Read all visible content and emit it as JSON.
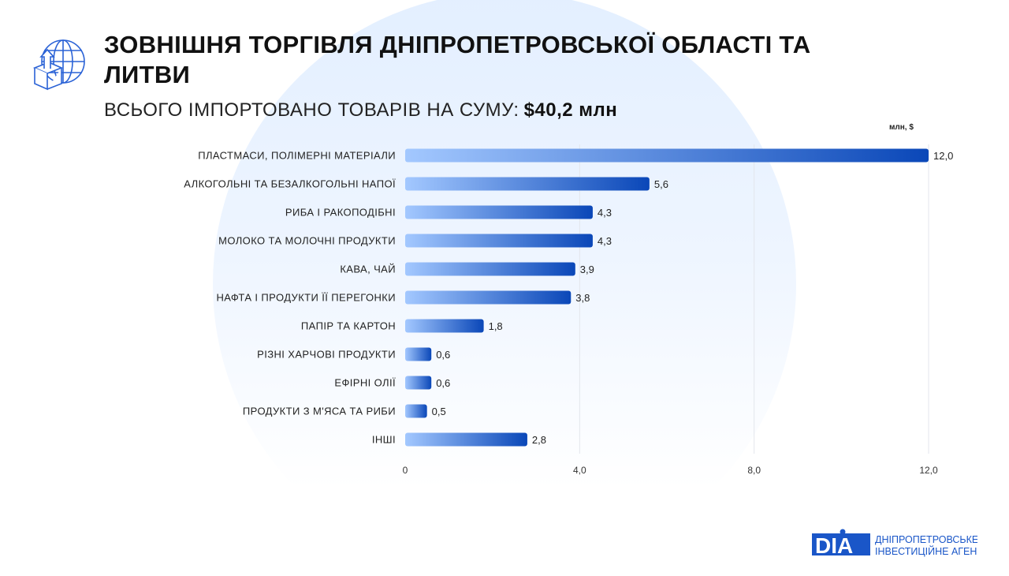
{
  "header": {
    "title": "ЗОВНІШНЯ ТОРГІВЛЯ ДНІПРОПЕТРОВСЬКОЇ ОБЛАСТІ ТА ЛИТВИ",
    "subtitle_label": "ВСЬОГО ІМПОРТОВАНО ТОВАРІВ НА СУМУ:",
    "subtitle_value": "$40,2 млн",
    "icon": "globe-box-export-icon"
  },
  "colors": {
    "bar_start": "#a3c8ff",
    "bar_end": "#0a47b8",
    "accent": "#1a56c8"
  },
  "chart_data": {
    "type": "bar",
    "orientation": "horizontal",
    "unit_label": "млн, $",
    "categories": [
      "ПЛАСТМАСИ, ПОЛІМЕРНІ МАТЕРІАЛИ",
      "АЛКОГОЛЬНІ ТА БЕЗАЛКОГОЛЬНІ НАПОЇ",
      "РИБА І РАКОПОДІБНІ",
      "МОЛОКО ТА МОЛОЧНІ ПРОДУКТИ",
      "КАВА, ЧАЙ",
      "НАФТА І ПРОДУКТИ ЇЇ ПЕРЕГОНКИ",
      "ПАПІР ТА КАРТОН",
      "РІЗНІ ХАРЧОВІ ПРОДУКТИ",
      "ЕФІРНІ ОЛІЇ",
      "ПРОДУКТИ З М'ЯСА ТА РИБИ",
      "ІНШІ"
    ],
    "values": [
      12.0,
      5.6,
      4.3,
      4.3,
      3.9,
      3.8,
      1.8,
      0.6,
      0.6,
      0.5,
      2.8
    ],
    "value_labels": [
      "12,0",
      "5,6",
      "4,3",
      "4,3",
      "3,9",
      "3,8",
      "1,8",
      "0,6",
      "0,6",
      "0,5",
      "2,8"
    ],
    "xlim": [
      0,
      12
    ],
    "xticks": [
      0,
      4,
      8,
      12
    ],
    "xtick_labels": [
      "0",
      "4,0",
      "8,0",
      "12,0"
    ],
    "grid": true
  },
  "footer": {
    "logo_text": "DIA",
    "org_line1": "ДНІПРОПЕТРОВСЬКЕ",
    "org_line2": "ІНВЕСТИЦІЙНЕ АГЕНСТВО"
  }
}
